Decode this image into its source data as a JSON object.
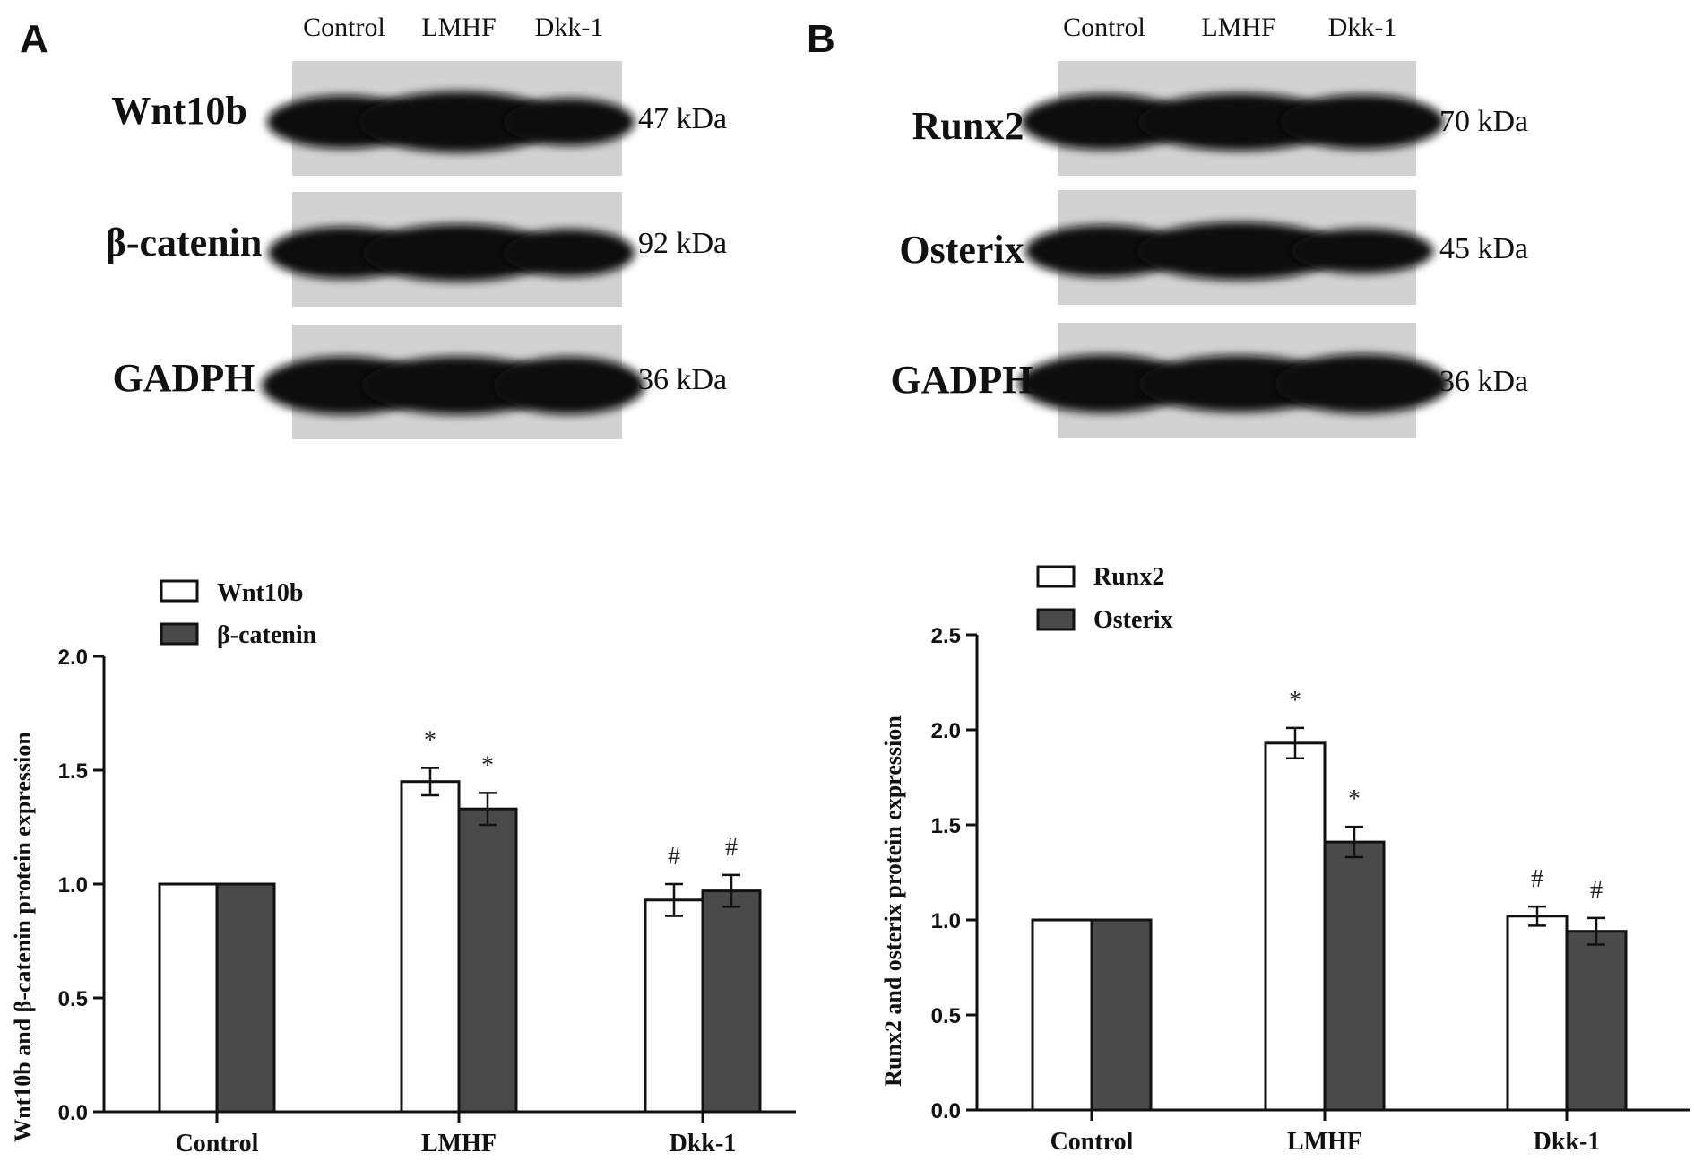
{
  "panels": [
    {
      "letter": "A",
      "lanes": [
        "Control",
        "LMHF",
        "Dkk-1"
      ],
      "blots": [
        {
          "protein": "Wnt10b",
          "kda": "47 kDa",
          "bands": [
            0.78,
            1.0,
            0.62
          ]
        },
        {
          "protein": "β-catenin",
          "kda": "92 kDa",
          "bands": [
            0.75,
            0.9,
            0.62
          ]
        },
        {
          "protein": "GADPH",
          "kda": "36 kDa",
          "bands": [
            0.92,
            0.92,
            0.9
          ]
        }
      ]
    },
    {
      "letter": "B",
      "lanes": [
        "Control",
        "LMHF",
        "Dkk-1"
      ],
      "blots": [
        {
          "protein": "Runx2",
          "kda": "70 kDa",
          "bands": [
            0.85,
            0.9,
            0.82
          ]
        },
        {
          "protein": "Osterix",
          "kda": "45 kDa",
          "bands": [
            0.75,
            0.92,
            0.55
          ]
        },
        {
          "protein": "GADPH",
          "kda": "36 kDa",
          "bands": [
            0.92,
            0.88,
            0.95
          ]
        }
      ]
    }
  ],
  "chart_data": [
    {
      "type": "bar",
      "categories": [
        "Control",
        "LMHF",
        "Dkk-1"
      ],
      "ylabel": "Wnt10b and β-catenin protein expression",
      "ylim": [
        0,
        2.0
      ],
      "yticks": [
        "0.0",
        "0.5",
        "1.0",
        "1.5",
        "2.0"
      ],
      "legend": "top-left",
      "series": [
        {
          "name": "Wnt10b",
          "color": "#ffffff",
          "values": [
            1.0,
            1.45,
            0.93
          ],
          "errors": [
            0,
            0.06,
            0.07
          ],
          "marks": [
            "",
            "*",
            "#"
          ]
        },
        {
          "name": "β-catenin",
          "color": "#4a4a4a",
          "values": [
            1.0,
            1.33,
            0.97
          ],
          "errors": [
            0,
            0.07,
            0.07
          ],
          "marks": [
            "",
            "*",
            "#"
          ]
        }
      ]
    },
    {
      "type": "bar",
      "categories": [
        "Control",
        "LMHF",
        "Dkk-1"
      ],
      "ylabel": "Runx2 and osterix protein expression",
      "ylim": [
        0,
        2.5
      ],
      "yticks": [
        "0.0",
        "0.5",
        "1.0",
        "1.5",
        "2.0",
        "2.5"
      ],
      "legend": "top-left",
      "series": [
        {
          "name": "Runx2",
          "color": "#ffffff",
          "values": [
            1.0,
            1.93,
            1.02
          ],
          "errors": [
            0,
            0.08,
            0.05
          ],
          "marks": [
            "",
            "*",
            "#"
          ]
        },
        {
          "name": "Osterix",
          "color": "#4a4a4a",
          "values": [
            1.0,
            1.41,
            0.94
          ],
          "errors": [
            0,
            0.08,
            0.07
          ],
          "marks": [
            "",
            "*",
            "#"
          ]
        }
      ]
    }
  ]
}
